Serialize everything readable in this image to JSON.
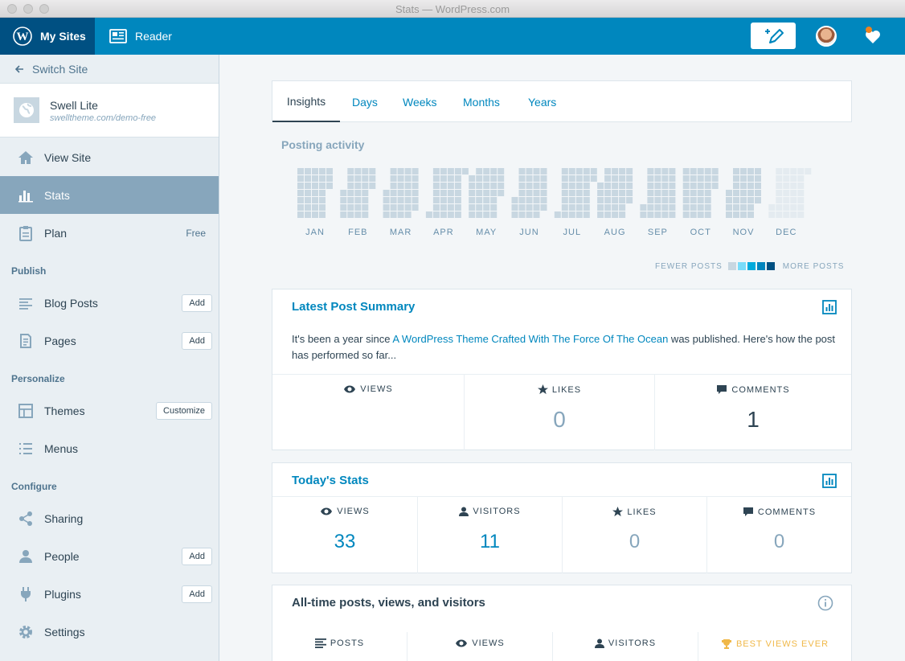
{
  "window": {
    "title": "Stats — WordPress.com"
  },
  "masterbar": {
    "my_sites": "My Sites",
    "reader": "Reader",
    "accent": "#0087be",
    "accent_dark": "#005082"
  },
  "sidebar": {
    "switch_site": "Switch Site",
    "site": {
      "name": "Swell Lite",
      "url": "swelltheme.com/demo-free"
    },
    "items": {
      "view_site": "View Site",
      "stats": "Stats",
      "plan": "Plan",
      "plan_badge": "Free",
      "blog_posts": "Blog Posts",
      "pages": "Pages",
      "themes": "Themes",
      "menus": "Menus",
      "sharing": "Sharing",
      "people": "People",
      "plugins": "Plugins",
      "settings": "Settings"
    },
    "sections": {
      "publish": "Publish",
      "personalize": "Personalize",
      "configure": "Configure"
    },
    "buttons": {
      "add": "Add",
      "customize": "Customize"
    }
  },
  "tabs": [
    {
      "label": "Insights",
      "active": true
    },
    {
      "label": "Days",
      "active": false
    },
    {
      "label": "Weeks",
      "active": false
    },
    {
      "label": "Months",
      "active": false
    },
    {
      "label": "Years",
      "active": false
    }
  ],
  "posting_activity": {
    "title": "Posting activity",
    "months": [
      "JAN",
      "FEB",
      "MAR",
      "APR",
      "MAY",
      "JUN",
      "JUL",
      "AUG",
      "SEP",
      "OCT",
      "NOV",
      "DEC"
    ],
    "legend_fewer": "FEWER POSTS",
    "legend_more": "MORE POSTS",
    "legend_colors": [
      "#c8d7e1",
      "#78dcfa",
      "#00aadc",
      "#0085be",
      "#005082"
    ],
    "empty_color": "#c8d7e1",
    "future_color": "#e4ebf0"
  },
  "latest_post": {
    "title": "Latest Post Summary",
    "text_before": "It's been a year since ",
    "link": "A WordPress Theme Crafted With The Force Of The Ocean",
    "text_after": " was published. Here's how the post has performed so far...",
    "stats": {
      "views_label": "VIEWS",
      "views_value": "",
      "likes_label": "LIKES",
      "likes_value": "0",
      "comments_label": "COMMENTS",
      "comments_value": "1"
    }
  },
  "today": {
    "title": "Today's Stats",
    "views_label": "VIEWS",
    "views": "33",
    "visitors_label": "VISITORS",
    "visitors": "11",
    "likes_label": "LIKES",
    "likes": "0",
    "comments_label": "COMMENTS",
    "comments": "0"
  },
  "all_time": {
    "title": "All-time posts, views, and visitors",
    "posts_label": "POSTS",
    "views_label": "VIEWS",
    "visitors_label": "VISITORS",
    "best_label": "BEST VIEWS EVER",
    "best_color": "#f0b849"
  }
}
